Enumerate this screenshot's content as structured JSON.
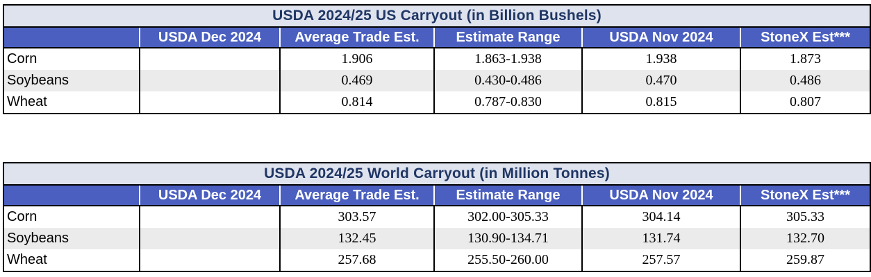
{
  "columns": [
    "",
    "USDA Dec 2024",
    "Average Trade Est.",
    "Estimate Range",
    "USDA Nov 2024",
    "StoneX Est***"
  ],
  "us_table": {
    "title": "USDA 2024/25 US Carryout (in Billion Bushels)",
    "rows": [
      {
        "label": "Corn",
        "dec": "",
        "avg": "1.906",
        "range": "1.863-1.938",
        "nov": "1.938",
        "stonex": "1.873"
      },
      {
        "label": "Soybeans",
        "dec": "",
        "avg": "0.469",
        "range": "0.430-0.486",
        "nov": "0.470",
        "stonex": "0.486"
      },
      {
        "label": "Wheat",
        "dec": "",
        "avg": "0.814",
        "range": "0.787-0.830",
        "nov": "0.815",
        "stonex": "0.807"
      }
    ]
  },
  "world_table": {
    "title": "USDA 2024/25 World Carryout (in Million Tonnes)",
    "rows": [
      {
        "label": "Corn",
        "dec": "",
        "avg": "303.57",
        "range": "302.00-305.33",
        "nov": "304.14",
        "stonex": "305.33"
      },
      {
        "label": "Soybeans",
        "dec": "",
        "avg": "132.45",
        "range": "130.90-134.71",
        "nov": "131.74",
        "stonex": "132.70"
      },
      {
        "label": "Wheat",
        "dec": "",
        "avg": "257.68",
        "range": "255.50-260.00",
        "nov": "257.57",
        "stonex": "259.87"
      }
    ]
  },
  "colors": {
    "header_bg": "#4a5fbf",
    "title_bg": "#dfe3ee",
    "title_text": "#1f3664",
    "alt_row": "#ebebeb"
  }
}
